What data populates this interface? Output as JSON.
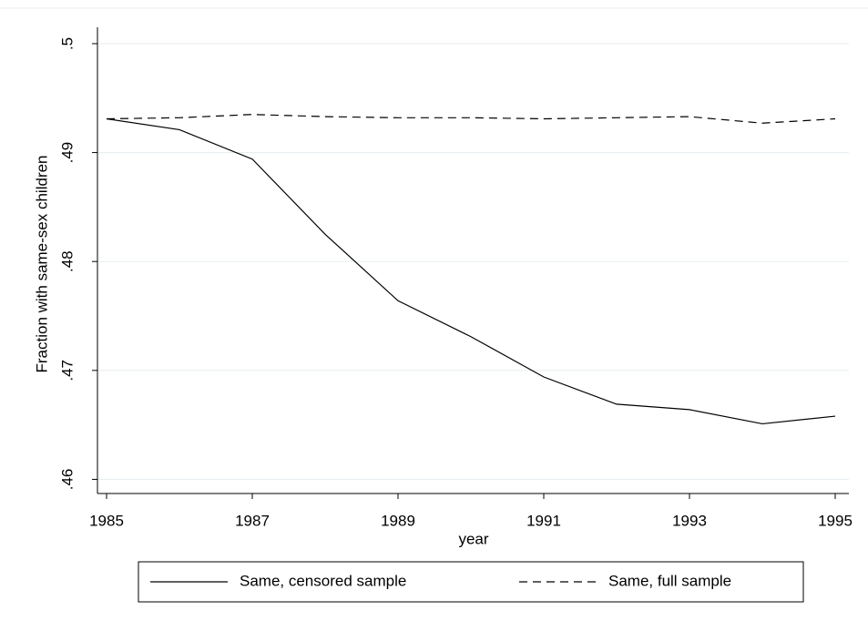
{
  "chart_data": {
    "type": "line",
    "x_label": "year",
    "y_label": "Fraction with same-sex children",
    "x": [
      1985,
      1986,
      1987,
      1988,
      1989,
      1990,
      1991,
      1992,
      1993,
      1994,
      1995
    ],
    "series": [
      {
        "name": "Same, censored sample",
        "color": "#000000",
        "line_style": "solid",
        "values": [
          0.4931,
          0.4921,
          0.4894,
          0.4825,
          0.4764,
          0.4731,
          0.4694,
          0.4669,
          0.4664,
          0.4651,
          0.4658
        ]
      },
      {
        "name": "Same, full sample",
        "color": "#000000",
        "line_style": "dashed",
        "values": [
          0.4931,
          0.4932,
          0.4935,
          0.4933,
          0.4932,
          0.4932,
          0.4931,
          0.4932,
          0.4933,
          0.4927,
          0.4931
        ]
      }
    ],
    "xlim": [
      1984.875,
      1995.1875
    ],
    "xticks": [
      1985,
      1987,
      1989,
      1991,
      1993,
      1995
    ],
    "ylim": [
      0.4587,
      0.5015
    ],
    "yticks": [
      {
        "value": 0.46,
        "label": ".46"
      },
      {
        "value": 0.47,
        "label": ".47"
      },
      {
        "value": 0.48,
        "label": ".48"
      },
      {
        "value": 0.49,
        "label": ".49"
      },
      {
        "value": 0.5,
        "label": ".5"
      }
    ],
    "grid": true,
    "legend": "bottom"
  }
}
